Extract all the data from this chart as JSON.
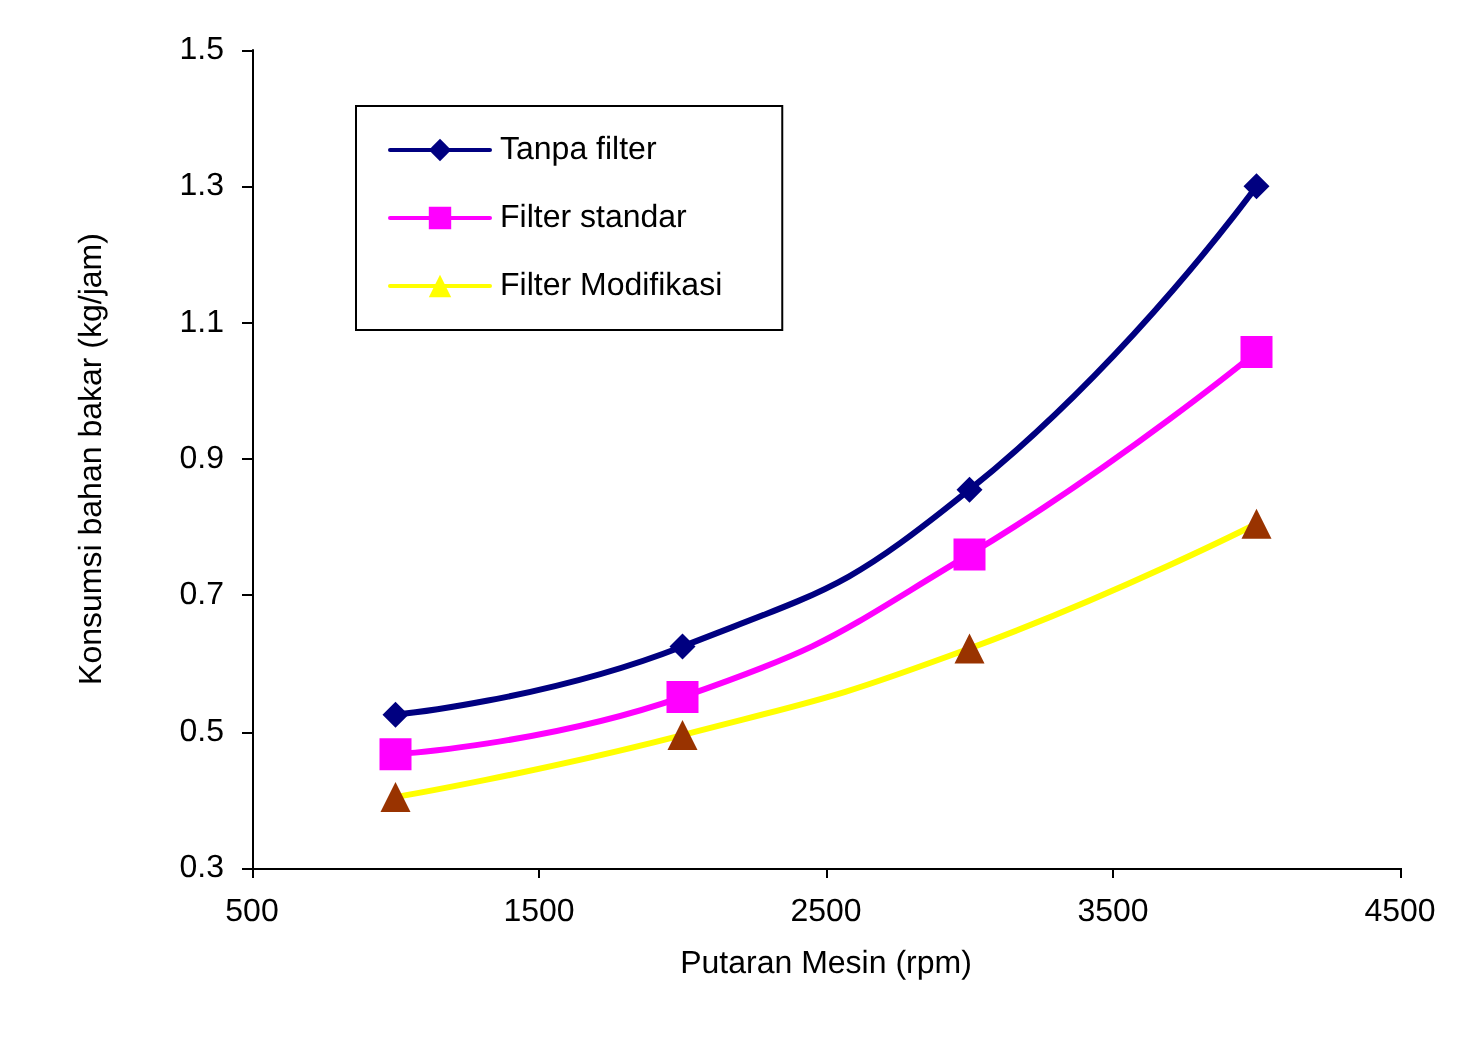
{
  "chart_data": {
    "type": "line",
    "xlabel": "Putaran Mesin (rpm)",
    "ylabel": "Konsumsi bahan bakar (kg/jam)",
    "x": [
      1000,
      2000,
      3000,
      4000
    ],
    "series": [
      {
        "name": "Tanpa filter",
        "color": "#000080",
        "marker": "diamond",
        "values": [
          0.525,
          0.625,
          0.855,
          1.3
        ]
      },
      {
        "name": "Filter standar",
        "color": "#ff00ff",
        "marker": "square",
        "values": [
          0.467,
          0.551,
          0.76,
          1.057
        ]
      },
      {
        "name": "Filter Modifikasi",
        "color": "#ffff00",
        "colors": [
          "#993300",
          "#993300",
          "#993300",
          "#993300"
        ],
        "marker": "triangle",
        "values": [
          0.404,
          0.495,
          0.622,
          0.805
        ]
      }
    ],
    "xlim": [
      500,
      4500
    ],
    "xticks": [
      500,
      1500,
      2500,
      3500,
      4500
    ],
    "ylim": [
      0.3,
      1.5
    ],
    "yticks": [
      0.3,
      0.5,
      0.7,
      0.9,
      1.1,
      1.3,
      1.5
    ],
    "grid": false,
    "legend": "top left"
  }
}
